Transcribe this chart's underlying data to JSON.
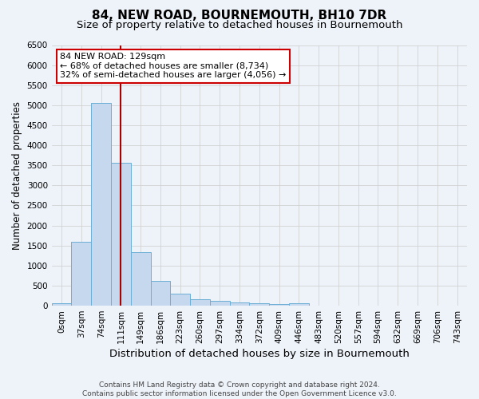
{
  "title": "84, NEW ROAD, BOURNEMOUTH, BH10 7DR",
  "subtitle": "Size of property relative to detached houses in Bournemouth",
  "xlabel": "Distribution of detached houses by size in Bournemouth",
  "ylabel": "Number of detached properties",
  "footer_line1": "Contains HM Land Registry data © Crown copyright and database right 2024.",
  "footer_line2": "Contains public sector information licensed under the Open Government Licence v3.0.",
  "bin_labels": [
    "0sqm",
    "37sqm",
    "74sqm",
    "111sqm",
    "149sqm",
    "186sqm",
    "223sqm",
    "260sqm",
    "297sqm",
    "334sqm",
    "372sqm",
    "409sqm",
    "446sqm",
    "483sqm",
    "520sqm",
    "557sqm",
    "594sqm",
    "632sqm",
    "669sqm",
    "706sqm",
    "743sqm"
  ],
  "bar_values": [
    55,
    1600,
    5050,
    3570,
    1330,
    610,
    295,
    165,
    125,
    85,
    55,
    45,
    65,
    0,
    0,
    0,
    0,
    0,
    0,
    0,
    0
  ],
  "bar_color": "#c5d8ee",
  "bar_edge_color": "#6baed6",
  "vline_x": 3.5,
  "vline_color": "#aa0000",
  "annotation_text": "84 NEW ROAD: 129sqm\n← 68% of detached houses are smaller (8,734)\n32% of semi-detached houses are larger (4,056) →",
  "annotation_box_color": "#ffffff",
  "annotation_box_edge": "#cc0000",
  "ylim": [
    0,
    6500
  ],
  "yticks": [
    0,
    500,
    1000,
    1500,
    2000,
    2500,
    3000,
    3500,
    4000,
    4500,
    5000,
    5500,
    6000,
    6500
  ],
  "bg_color": "#eef2f9",
  "title_fontsize": 11,
  "subtitle_fontsize": 9.5,
  "xlabel_fontsize": 9.5,
  "ylabel_fontsize": 8.5,
  "tick_fontsize": 7.5,
  "annot_fontsize": 8,
  "footer_fontsize": 6.5
}
